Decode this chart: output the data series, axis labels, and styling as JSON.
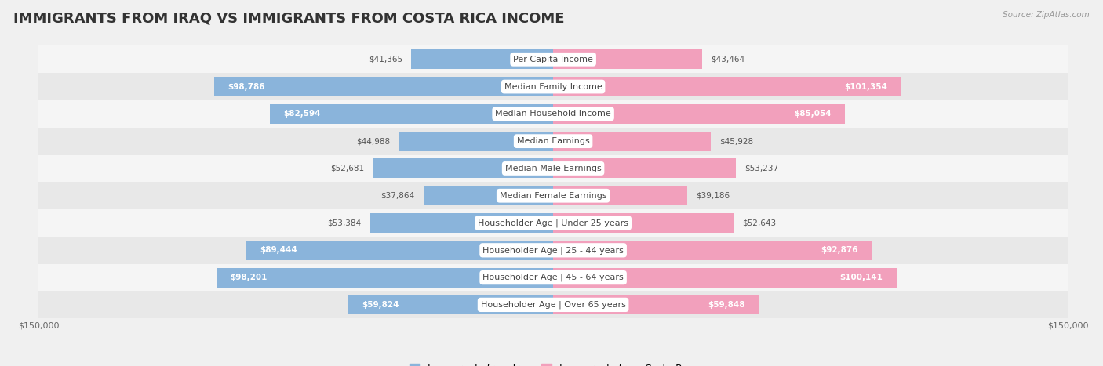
{
  "title": "IMMIGRANTS FROM IRAQ VS IMMIGRANTS FROM COSTA RICA INCOME",
  "source": "Source: ZipAtlas.com",
  "categories": [
    "Per Capita Income",
    "Median Family Income",
    "Median Household Income",
    "Median Earnings",
    "Median Male Earnings",
    "Median Female Earnings",
    "Householder Age | Under 25 years",
    "Householder Age | 25 - 44 years",
    "Householder Age | 45 - 64 years",
    "Householder Age | Over 65 years"
  ],
  "iraq_values": [
    41365,
    98786,
    82594,
    44988,
    52681,
    37864,
    53384,
    89444,
    98201,
    59824
  ],
  "costa_rica_values": [
    43464,
    101354,
    85054,
    45928,
    53237,
    39186,
    52643,
    92876,
    100141,
    59848
  ],
  "iraq_labels": [
    "$41,365",
    "$98,786",
    "$82,594",
    "$44,988",
    "$52,681",
    "$37,864",
    "$53,384",
    "$89,444",
    "$98,201",
    "$59,824"
  ],
  "costa_rica_labels": [
    "$43,464",
    "$101,354",
    "$85,054",
    "$45,928",
    "$53,237",
    "$39,186",
    "$52,643",
    "$92,876",
    "$100,141",
    "$59,848"
  ],
  "iraq_color": "#8ab4db",
  "costa_rica_color": "#f2a0bc",
  "iraq_large_color": "#6699cc",
  "costa_rica_large_color": "#e8547a",
  "max_value": 150000,
  "legend_iraq": "Immigrants from Iraq",
  "legend_costa_rica": "Immigrants from Costa Rica",
  "bg_color": "#f0f0f0",
  "row_bg_light": "#f5f5f5",
  "row_bg_dark": "#e8e8e8",
  "title_fontsize": 13,
  "cat_fontsize": 8.0,
  "value_fontsize": 7.5,
  "axis_label_fontsize": 8,
  "threshold_inside": 55000
}
